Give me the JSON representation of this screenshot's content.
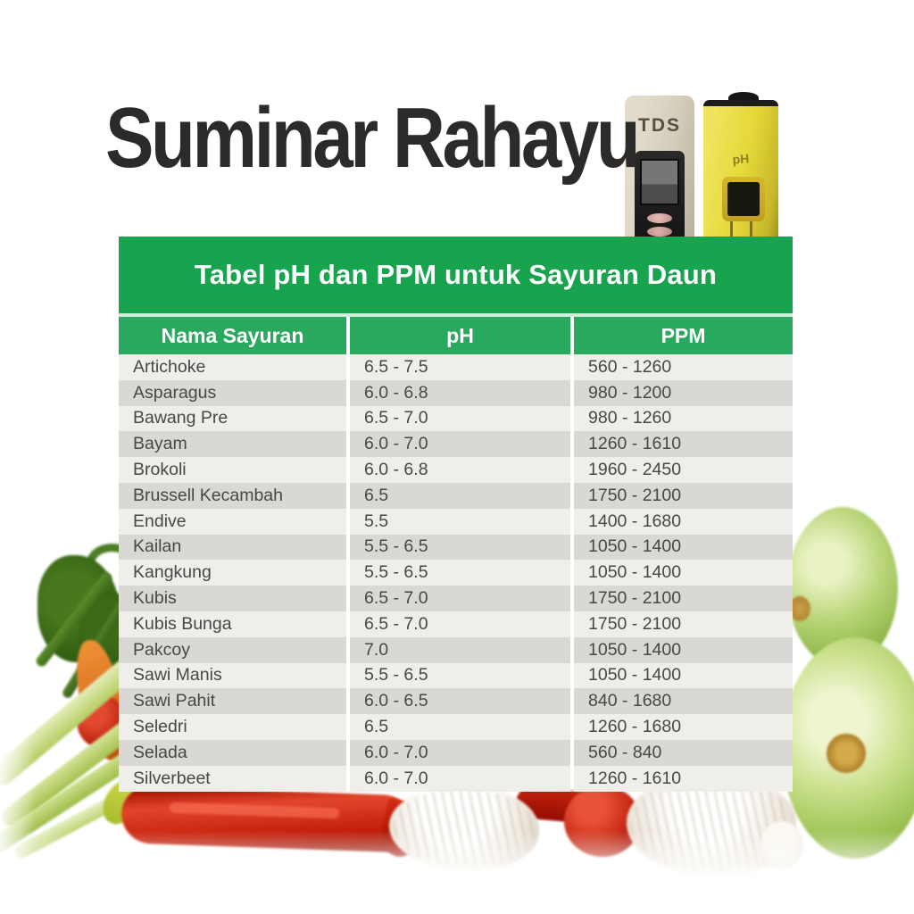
{
  "brand": {
    "title": "Suminar Rahayu"
  },
  "devices": {
    "tds": {
      "label": "TDS"
    },
    "ph": {
      "label": "pH"
    }
  },
  "table": {
    "title": "Tabel pH dan PPM untuk Sayuran Daun",
    "columns": [
      "Nama Sayuran",
      "pH",
      "PPM"
    ],
    "rows": [
      {
        "name": "Artichoke",
        "ph": "6.5 - 7.5",
        "ppm": "560 - 1260"
      },
      {
        "name": "Asparagus",
        "ph": "6.0 - 6.8",
        "ppm": "980 - 1200"
      },
      {
        "name": "Bawang Pre",
        "ph": "6.5 - 7.0",
        "ppm": "980 - 1260"
      },
      {
        "name": "Bayam",
        "ph": "6.0 - 7.0",
        "ppm": "1260 - 1610"
      },
      {
        "name": "Brokoli",
        "ph": "6.0 - 6.8",
        "ppm": "1960 - 2450"
      },
      {
        "name": "Brussell Kecambah",
        "ph": "6.5",
        "ppm": "1750 - 2100"
      },
      {
        "name": "Endive",
        "ph": "5.5",
        "ppm": "1400 - 1680"
      },
      {
        "name": "Kailan",
        "ph": "5.5 - 6.5",
        "ppm": "1050 - 1400"
      },
      {
        "name": "Kangkung",
        "ph": "5.5 - 6.5",
        "ppm": "1050 - 1400"
      },
      {
        "name": "Kubis",
        "ph": "6.5 - 7.0",
        "ppm": "1750 - 2100"
      },
      {
        "name": "Kubis Bunga",
        "ph": "6.5 - 7.0",
        "ppm": "1750 - 2100"
      },
      {
        "name": "Pakcoy",
        "ph": "7.0",
        "ppm": "1050 - 1400"
      },
      {
        "name": "Sawi Manis",
        "ph": "5.5 - 6.5",
        "ppm": "1050 - 1400"
      },
      {
        "name": "Sawi Pahit",
        "ph": "6.0 - 6.5",
        "ppm": "840 - 1680"
      },
      {
        "name": "Seledri",
        "ph": "6.5",
        "ppm": "1260 - 1680"
      },
      {
        "name": "Selada",
        "ph": "6.0 - 7.0",
        "ppm": "560 - 840"
      },
      {
        "name": "Silverbeet",
        "ph": "6.0 - 7.0",
        "ppm": "1260 - 1610"
      }
    ]
  },
  "colors": {
    "title_bar_green": "#18a34e",
    "header_row_green": "#28a95d",
    "row_light": "#efeeeb",
    "row_dark": "#d9d8d5",
    "data_text": "#474747",
    "brand_text": "#2d2a2a",
    "ph_meter_yellow": "#e5d838",
    "tds_meter_beige": "#d5cdbb"
  },
  "chart_data": {
    "type": "table",
    "title": "Tabel pH dan PPM untuk Sayuran Daun",
    "columns": [
      "Nama Sayuran",
      "pH",
      "PPM"
    ],
    "rows": [
      [
        "Artichoke",
        "6.5 - 7.5",
        "560 - 1260"
      ],
      [
        "Asparagus",
        "6.0 - 6.8",
        "980 - 1200"
      ],
      [
        "Bawang Pre",
        "6.5 - 7.0",
        "980 - 1260"
      ],
      [
        "Bayam",
        "6.0 - 7.0",
        "1260 - 1610"
      ],
      [
        "Brokoli",
        "6.0 - 6.8",
        "1960 - 2450"
      ],
      [
        "Brussell Kecambah",
        "6.5",
        "1750 - 2100"
      ],
      [
        "Endive",
        "5.5",
        "1400 - 1680"
      ],
      [
        "Kailan",
        "5.5 - 6.5",
        "1050 - 1400"
      ],
      [
        "Kangkung",
        "5.5 - 6.5",
        "1050 - 1400"
      ],
      [
        "Kubis",
        "6.5 - 7.0",
        "1750 - 2100"
      ],
      [
        "Kubis Bunga",
        "6.5 - 7.0",
        "1750 - 2100"
      ],
      [
        "Pakcoy",
        "7.0",
        "1050 - 1400"
      ],
      [
        "Sawi Manis",
        "5.5 - 6.5",
        "1050 - 1400"
      ],
      [
        "Sawi Pahit",
        "6.0 - 6.5",
        "840 - 1680"
      ],
      [
        "Seledri",
        "6.5",
        "1260 - 1680"
      ],
      [
        "Selada",
        "6.0 - 7.0",
        "560 - 840"
      ],
      [
        "Silverbeet",
        "6.0 - 7.0",
        "1260 - 1610"
      ]
    ]
  }
}
